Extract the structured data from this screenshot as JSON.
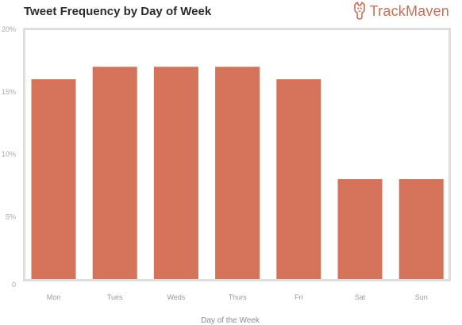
{
  "header": {
    "title": "Tweet Frequency by Day of Week",
    "brand_name": "TrackMaven",
    "brand_icon": "trackmaven-logo-icon"
  },
  "colors": {
    "bar": "#d4735a",
    "frame": "#dedede",
    "brand": "#d06d52"
  },
  "chart_data": {
    "type": "bar",
    "title": "Tweet Frequency by Day of Week",
    "xlabel": "Day of the Week",
    "ylabel": "",
    "categories": [
      "Mon",
      "Tues",
      "Weds",
      "Thurs",
      "Fri",
      "Sat",
      "Sun"
    ],
    "values": [
      16,
      17,
      17,
      17,
      16,
      8,
      8
    ],
    "unit": "%",
    "ylim": [
      0,
      20
    ],
    "yticks": [
      "0",
      "5%",
      "10%",
      "15%",
      "20%"
    ],
    "grid": false,
    "legend": "none"
  }
}
